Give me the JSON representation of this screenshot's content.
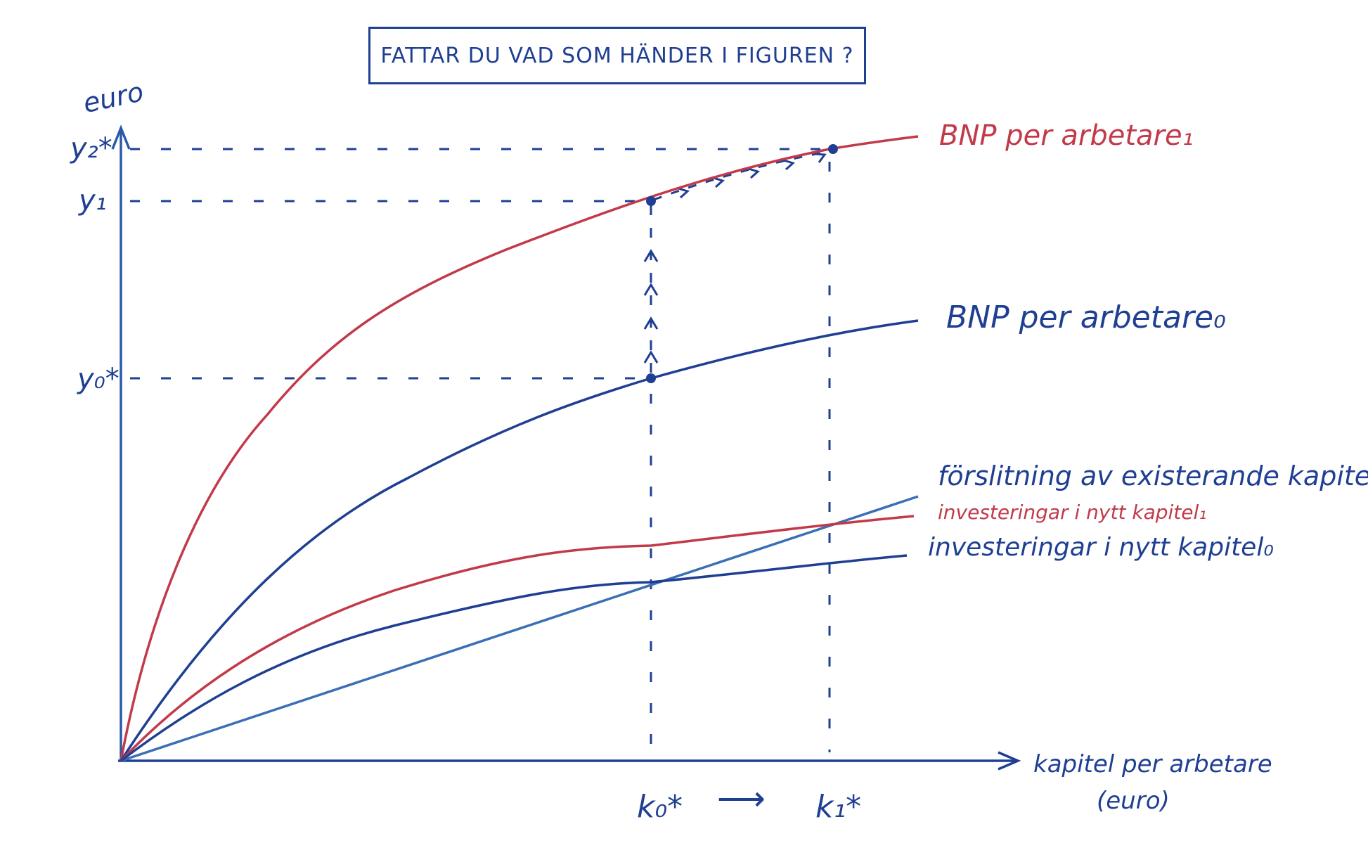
{
  "title": "FATTAR DU VAD SOM HÄNDER I FIGUREN ?",
  "axes": {
    "y_label": "euro",
    "x_label_line1": "kapitel per arbetare",
    "x_label_line2": "(euro)"
  },
  "y_ticks": {
    "y2": "y₂*",
    "y1": "y₁",
    "y0": "y₀*"
  },
  "x_ticks": {
    "k0": "k₀*",
    "k1": "k₁*",
    "arrow": "⟶"
  },
  "curves": {
    "bnp1": "BNP per arbetare₁",
    "bnp0": "BNP per arbetare₀",
    "depreciation": "förslitning av existerande kapitel",
    "invest1": "investeringar i nytt kapitel₁",
    "invest0": "investeringar i nytt kapitel₀"
  },
  "colors": {
    "blue": "#1f3f93",
    "light_blue": "#3a6fb5",
    "red": "#c23a4a"
  }
}
